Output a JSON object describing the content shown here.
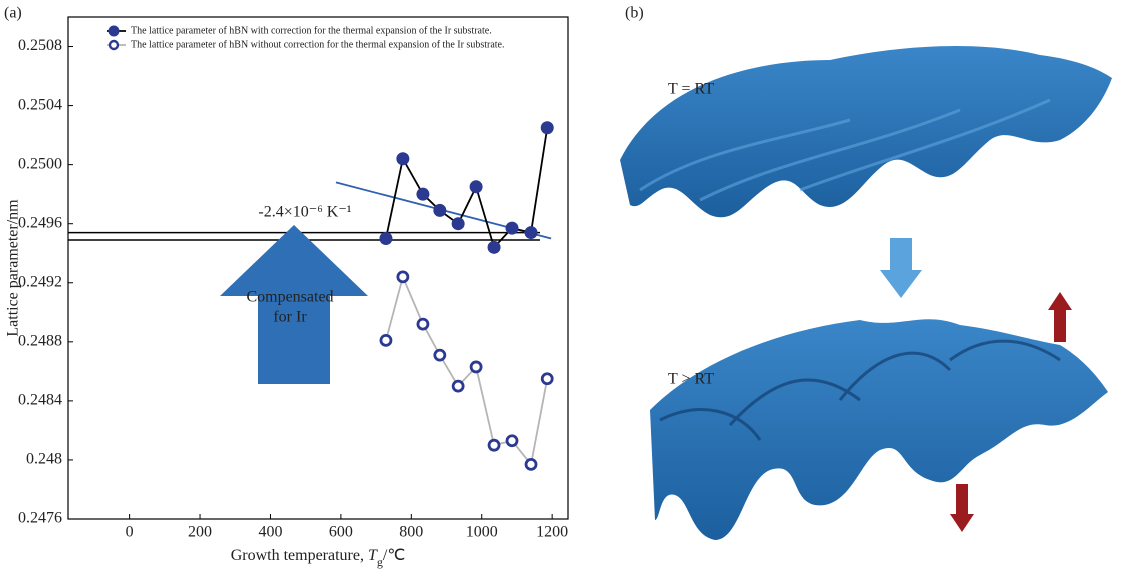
{
  "panel_a_label": "(a)",
  "chart_data": {
    "type": "line",
    "x_label_parts": [
      "Growth temperature, ",
      "T",
      "g",
      "/℃"
    ],
    "y_label": "Lattice parameter/nm",
    "xlim": [
      -175,
      1245
    ],
    "xticks": [
      0,
      200,
      400,
      600,
      800,
      1000,
      1200
    ],
    "ylim": [
      0.2476,
      0.251
    ],
    "yticks": [
      0.2476,
      0.248,
      0.2484,
      0.2488,
      0.2492,
      0.2496,
      {
        "value": 0.25,
        "label": "0.2500"
      },
      0.2504,
      0.2508
    ],
    "series": [
      {
        "name": "The lattice parameter of hBN with correction for the thermal expansion of the Ir substrate.",
        "color": "#2b3990",
        "line_color": "#000000",
        "marker": "filled",
        "x": [
          728,
          776,
          833,
          881,
          933,
          984,
          1035,
          1086,
          1140,
          1186
        ],
        "values": [
          0.2495,
          0.25004,
          0.2498,
          0.24969,
          0.2496,
          0.24985,
          0.24944,
          0.24957,
          0.24954,
          0.25025
        ]
      },
      {
        "name": "The lattice parameter of hBN without correction for the thermal expansion of the Ir substrate.",
        "color": "#2b3990",
        "line_color": "#b5b5b5",
        "marker": "open",
        "x": [
          728,
          776,
          833,
          881,
          933,
          984,
          1035,
          1086,
          1140,
          1186
        ],
        "values": [
          0.24881,
          0.24924,
          0.24892,
          0.24871,
          0.2485,
          0.24863,
          0.2481,
          0.24813,
          0.24797,
          0.24855
        ]
      }
    ],
    "trend_line": {
      "color": "#2e5fb0",
      "x": [
        586,
        1197
      ],
      "values": [
        0.24988,
        0.2495
      ]
    },
    "reference_lines": [
      0.24954,
      0.24949
    ],
    "slope_annotation": "-2.4×10⁻⁶ K⁻¹",
    "arrow_annotation": [
      "Compensated",
      "for Ir"
    ]
  },
  "panel_b": {
    "label": "(b)",
    "states": [
      "T  =  RT",
      "T  >  RT"
    ]
  }
}
